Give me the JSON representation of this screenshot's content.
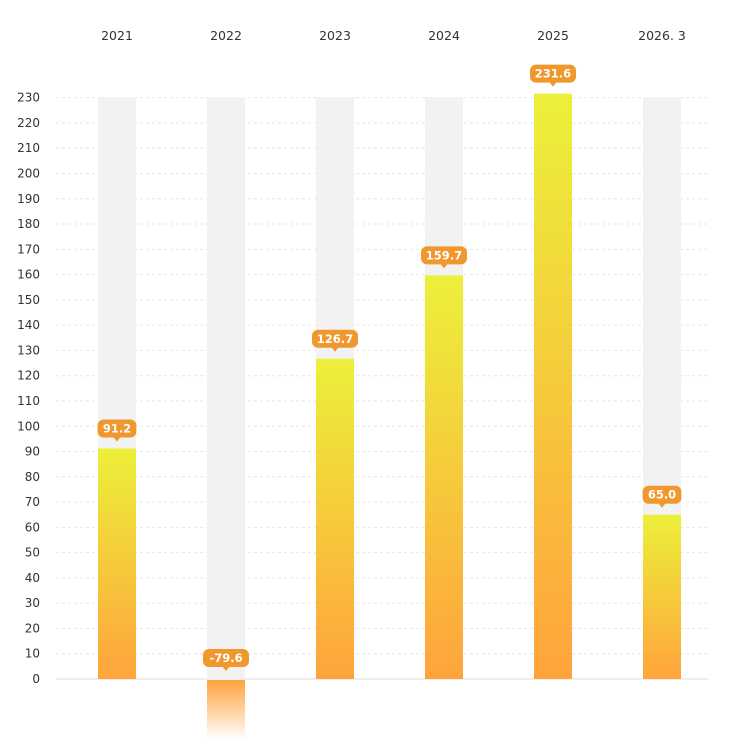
{
  "chart_data": {
    "type": "bar",
    "categories": [
      "2021",
      "2022",
      "2023",
      "2024",
      "2025",
      "2026. 3"
    ],
    "values": [
      91.2,
      -79.6,
      126.7,
      159.7,
      231.6,
      65.0
    ],
    "data_labels": [
      "91.2",
      "-79.6",
      "126.7",
      "159.7",
      "231.6",
      "65.0"
    ],
    "ylim": [
      0,
      230
    ],
    "yticks": [
      0,
      10,
      20,
      30,
      40,
      50,
      60,
      70,
      80,
      90,
      100,
      110,
      120,
      130,
      140,
      150,
      160,
      170,
      180,
      190,
      200,
      210,
      220,
      230
    ],
    "grid": true,
    "category_axis_position": "top",
    "colors": {
      "bar_top": "#ecf03a",
      "bar_bottom": "#ffa43c",
      "bar_background": "#f2f2f2",
      "label_bg": "#f0972e",
      "label_text": "#ffffff",
      "gridline": "#e6e6e6",
      "text": "#333333"
    }
  }
}
